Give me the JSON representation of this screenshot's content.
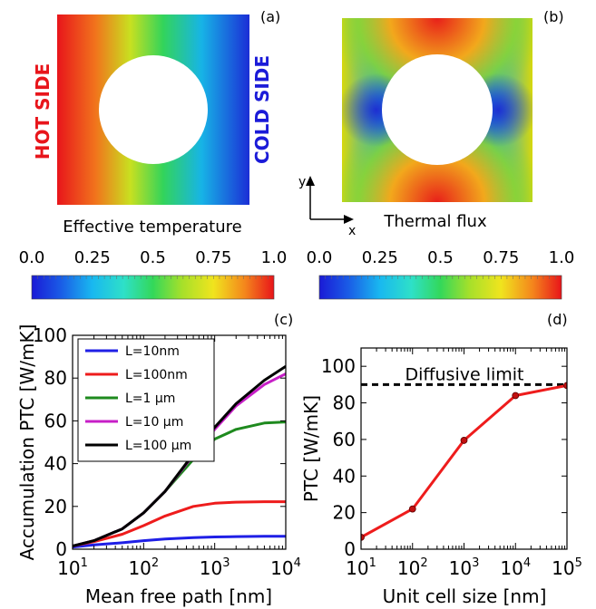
{
  "panel_a": {
    "letter": "(a)",
    "hot_label": "HOT SIDE",
    "cold_label": "COLD SIDE",
    "caption": "Effective temperature"
  },
  "panel_b": {
    "letter": "(b)",
    "caption": "Thermal flux",
    "axis_y": "y",
    "axis_x": "x"
  },
  "colorbar_left": {
    "ticks": [
      "0.0",
      "0.25",
      "0.5",
      "0.75",
      "1.0"
    ]
  },
  "colorbar_right": {
    "ticks": [
      "0.0",
      "0.25",
      "0.5",
      "0.75",
      "1.0"
    ]
  },
  "colors": {
    "hot": "#e8151b",
    "cold": "#1b1bd8",
    "series": [
      "#1f1fe6",
      "#ee1c1c",
      "#1e8a1e",
      "#c71fc7",
      "#000000"
    ],
    "limit_line": "#000000"
  },
  "chart_data": [
    {
      "type": "line",
      "panel": "(c)",
      "xlabel": "Mean free path [nm]",
      "ylabel": "Accumulation PTC [W/mK]",
      "xscale": "log",
      "xlim": [
        10,
        10000
      ],
      "ylim": [
        0,
        100
      ],
      "x_ticks": [
        {
          "base": "10",
          "exp": "1"
        },
        {
          "base": "10",
          "exp": "2"
        },
        {
          "base": "10",
          "exp": "3"
        },
        {
          "base": "10",
          "exp": "4"
        }
      ],
      "y_ticks": [
        "0",
        "20",
        "40",
        "60",
        "80",
        "100"
      ],
      "legend_position": "top-left",
      "x": [
        10,
        20,
        50,
        100,
        200,
        500,
        1000,
        2000,
        5000,
        10000
      ],
      "series": [
        {
          "name": "L=10nm",
          "values": [
            1.0,
            2.0,
            3.0,
            4.0,
            4.8,
            5.4,
            5.7,
            5.9,
            6.0,
            6.0
          ]
        },
        {
          "name": "L=100nm",
          "values": [
            1.5,
            3.5,
            7.0,
            11.0,
            15.5,
            20.0,
            21.5,
            22.0,
            22.2,
            22.2
          ]
        },
        {
          "name": "L=1 μm",
          "values": [
            1.5,
            4.0,
            9.5,
            17.0,
            27.0,
            42.0,
            51.5,
            56.0,
            59.0,
            59.5
          ]
        },
        {
          "name": "L=10 μm",
          "values": [
            1.5,
            4.0,
            9.5,
            17.0,
            27.0,
            44.0,
            56.0,
            67.0,
            77.0,
            82.0
          ]
        },
        {
          "name": "L=100 μm",
          "values": [
            1.5,
            4.0,
            9.5,
            17.0,
            27.0,
            44.5,
            57.0,
            68.0,
            79.0,
            85.5
          ]
        }
      ]
    },
    {
      "type": "line",
      "panel": "(d)",
      "xlabel": "Unit cell size [nm]",
      "ylabel": "PTC [W/mK]",
      "xscale": "log",
      "xlim": [
        10,
        100000
      ],
      "ylim": [
        0,
        110
      ],
      "x_ticks": [
        {
          "base": "10",
          "exp": "1"
        },
        {
          "base": "10",
          "exp": "2"
        },
        {
          "base": "10",
          "exp": "3"
        },
        {
          "base": "10",
          "exp": "4"
        },
        {
          "base": "10",
          "exp": "5"
        }
      ],
      "y_ticks": [
        "0",
        "20",
        "40",
        "60",
        "80",
        "100"
      ],
      "x": [
        10,
        100,
        1000,
        10000,
        100000
      ],
      "series": [
        {
          "name": "PTC",
          "values": [
            6.5,
            22.0,
            59.5,
            84.0,
            89.5
          ]
        }
      ],
      "reference_line": {
        "label": "Diffusive limit",
        "value": 90
      }
    }
  ]
}
